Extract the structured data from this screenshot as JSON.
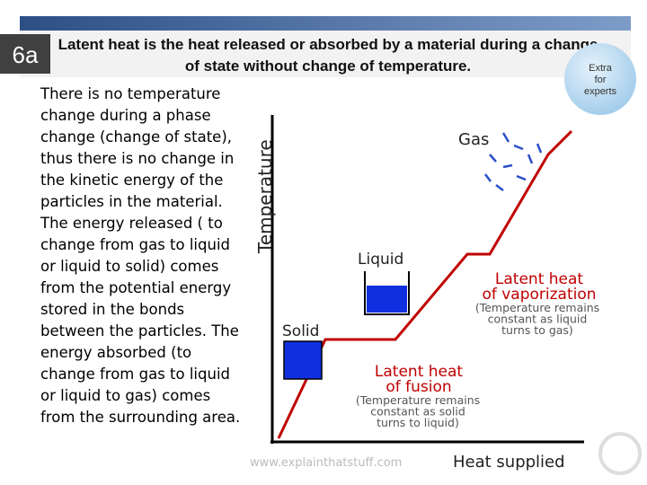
{
  "slide": {
    "number": "6a",
    "title_lines": [
      "Latent heat is the heat released or absorbed by a material during a change",
      "of state without change of temperature."
    ],
    "badge": [
      "Extra",
      "for",
      "experts"
    ],
    "body_lines": [
      "There is no temperature",
      "change during a phase",
      "change (change of state),",
      "thus there is no change in",
      "the kinetic energy of the",
      "particles in the material.",
      "The energy released ( to",
      "change from gas to liquid",
      "or liquid to solid) comes",
      "from the potential energy",
      "stored in the bonds",
      "between the particles. The",
      "energy absorbed (to",
      "change from gas to liquid",
      "or liquid to gas) comes",
      "from the surrounding area."
    ]
  },
  "diagram": {
    "y_axis": "Temperature",
    "x_axis": "Heat supplied",
    "gas": "Gas",
    "liquid": "Liquid",
    "solid": "Solid",
    "vaporization": [
      "Latent heat",
      "of vaporization"
    ],
    "vaporization_note": [
      "(Temperature remains",
      "constant as liquid",
      "turns to gas)"
    ],
    "fusion": [
      "Latent heat",
      "of fusion"
    ],
    "fusion_note": [
      "(Temperature remains",
      "constant as solid",
      "turns to liquid)"
    ],
    "credit": "www.explainthatstuff.com"
  }
}
